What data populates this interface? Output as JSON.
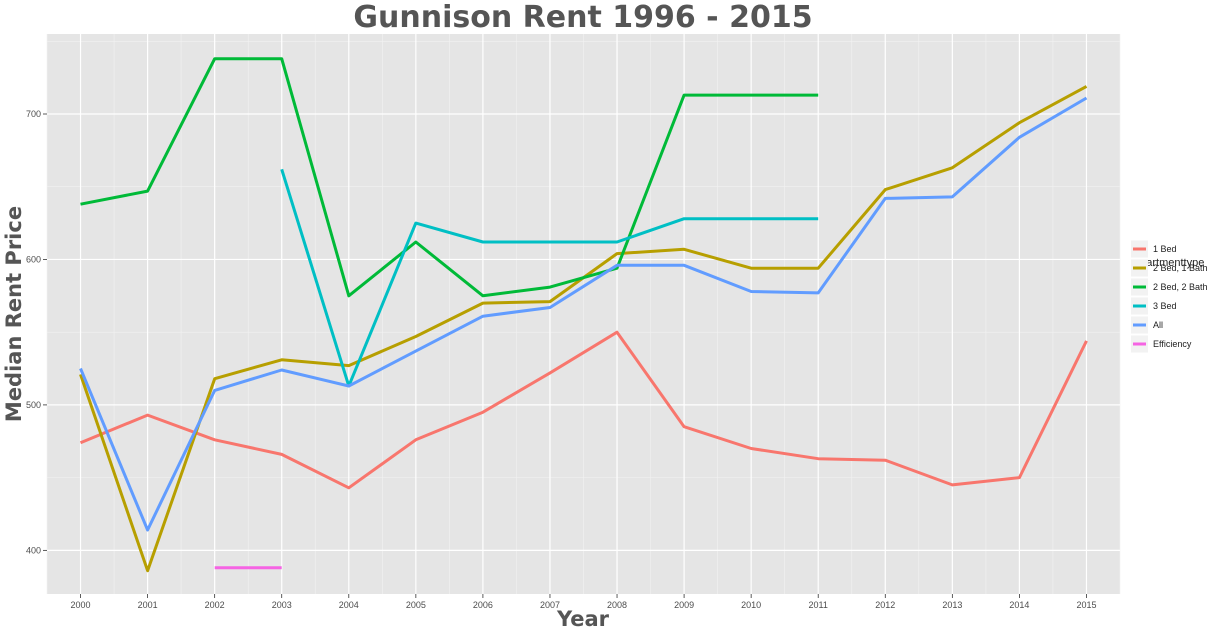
{
  "chart_data": {
    "type": "line",
    "title": "Gunnison Rent 1996 - 2015",
    "xlabel": "Year",
    "ylabel": "Median Rent Price",
    "xlim": [
      1999.5,
      2015.5
    ],
    "ylim": [
      370,
      755
    ],
    "x_ticks": [
      2000,
      2001,
      2002,
      2003,
      2004,
      2005,
      2006,
      2007,
      2008,
      2009,
      2010,
      2011,
      2012,
      2013,
      2014,
      2015
    ],
    "y_ticks": [
      400,
      500,
      600,
      700
    ],
    "grid": true,
    "legend": {
      "title": "apartmenttype",
      "position": "right"
    },
    "series": [
      {
        "name": "1 Bed",
        "color": "#F8766D",
        "points": [
          [
            2000,
            474
          ],
          [
            2001,
            493
          ],
          [
            2002,
            476
          ],
          [
            2003,
            466
          ],
          [
            2004,
            443
          ],
          [
            2005,
            476
          ],
          [
            2006,
            495
          ],
          [
            2007,
            522
          ],
          [
            2008,
            550
          ],
          [
            2009,
            485
          ],
          [
            2010,
            470
          ],
          [
            2011,
            463
          ],
          [
            2012,
            462
          ],
          [
            2013,
            445
          ],
          [
            2014,
            450
          ],
          [
            2015,
            544
          ]
        ]
      },
      {
        "name": "2 Bed, 1 Bath",
        "color": "#B79F00",
        "points": [
          [
            2000,
            521
          ],
          [
            2001,
            386
          ],
          [
            2002,
            518
          ],
          [
            2003,
            531
          ],
          [
            2004,
            527
          ],
          [
            2005,
            547
          ],
          [
            2006,
            570
          ],
          [
            2007,
            571
          ],
          [
            2008,
            604
          ],
          [
            2009,
            607
          ],
          [
            2010,
            594
          ],
          [
            2011,
            594
          ],
          [
            2012,
            648
          ],
          [
            2013,
            663
          ],
          [
            2014,
            694
          ],
          [
            2015,
            719
          ]
        ]
      },
      {
        "name": "2 Bed, 2 Bath",
        "color": "#00BA38",
        "points": [
          [
            2000,
            638
          ],
          [
            2001,
            647
          ],
          [
            2002,
            738
          ],
          [
            2003,
            738
          ],
          [
            2004,
            575
          ],
          [
            2005,
            612
          ],
          [
            2006,
            575
          ],
          [
            2007,
            581
          ],
          [
            2008,
            594
          ],
          [
            2009,
            713
          ],
          [
            2010,
            713
          ],
          [
            2011,
            713
          ]
        ]
      },
      {
        "name": "3 Bed",
        "color": "#00BFC4",
        "points": [
          [
            2003,
            662
          ],
          [
            2004,
            513
          ],
          [
            2005,
            625
          ],
          [
            2006,
            612
          ],
          [
            2007,
            612
          ],
          [
            2008,
            612
          ],
          [
            2009,
            628
          ],
          [
            2010,
            628
          ],
          [
            2011,
            628
          ]
        ]
      },
      {
        "name": "All",
        "color": "#619CFF",
        "points": [
          [
            2000,
            525
          ],
          [
            2001,
            414
          ],
          [
            2002,
            510
          ],
          [
            2003,
            524
          ],
          [
            2004,
            513
          ],
          [
            2005,
            537
          ],
          [
            2006,
            561
          ],
          [
            2007,
            567
          ],
          [
            2008,
            596
          ],
          [
            2009,
            596
          ],
          [
            2010,
            578
          ],
          [
            2011,
            577
          ],
          [
            2012,
            642
          ],
          [
            2013,
            643
          ],
          [
            2014,
            684
          ],
          [
            2015,
            711
          ]
        ]
      },
      {
        "name": "Efficiency",
        "color": "#F564E3",
        "points": [
          [
            2002,
            388
          ],
          [
            2003,
            388
          ]
        ]
      }
    ]
  }
}
